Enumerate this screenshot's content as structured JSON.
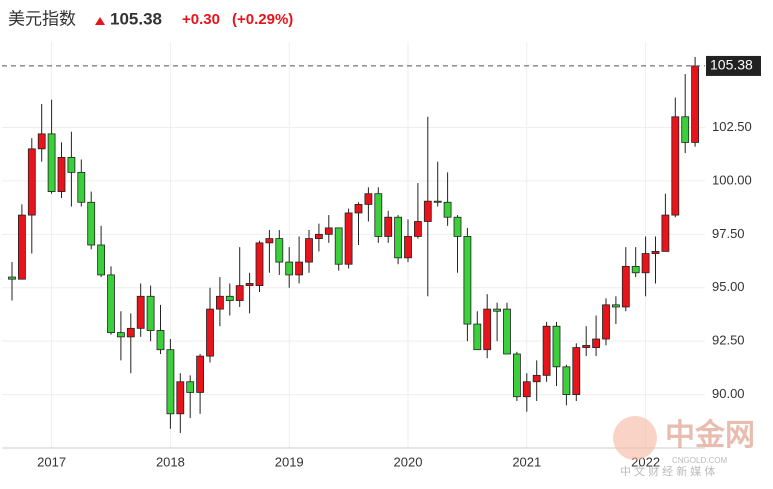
{
  "header": {
    "title": "美元指数",
    "price": 105.38,
    "change": "+0.30",
    "change_pct": "(+0.29%)"
  },
  "watermark": {
    "brand": "中金网",
    "site": "CNGOLD.COM",
    "slogan": "中 文 财 经 新 媒 体"
  },
  "chart_data": {
    "type": "candlestick",
    "categories": [
      null,
      null,
      null,
      null,
      "2017",
      null,
      null,
      null,
      null,
      null,
      null,
      null,
      null,
      null,
      null,
      null,
      "2018",
      null,
      null,
      null,
      null,
      null,
      null,
      null,
      null,
      null,
      null,
      null,
      "2019",
      null,
      null,
      null,
      null,
      null,
      null,
      null,
      null,
      null,
      null,
      null,
      "2020",
      null,
      null,
      null,
      null,
      null,
      null,
      null,
      null,
      null,
      null,
      null,
      "2021",
      null,
      null,
      null,
      null,
      null,
      null,
      null,
      null,
      null,
      null,
      null,
      "2022",
      null,
      null,
      null,
      null,
      null
    ],
    "open": [
      95.5,
      95.4,
      98.4,
      101.5,
      102.2,
      99.5,
      101.1,
      100.4,
      99.0,
      97.0,
      95.6,
      92.9,
      92.7,
      93.1,
      94.6,
      93.0,
      92.1,
      89.1,
      90.6,
      90.1,
      91.8,
      94.0,
      94.6,
      94.4,
      95.1,
      95.1,
      97.1,
      97.3,
      96.2,
      95.6,
      96.2,
      97.3,
      97.5,
      97.8,
      96.1,
      98.5,
      98.9,
      99.4,
      97.4,
      98.3,
      96.4,
      97.4,
      98.1,
      99.05,
      99.0,
      98.3,
      97.4,
      93.3,
      92.1,
      94.0,
      94.0,
      91.9,
      89.9,
      90.6,
      90.9,
      93.2,
      91.3,
      90.0,
      92.2,
      92.2,
      92.6,
      94.2,
      94.1,
      96.0,
      95.7,
      96.6,
      96.7,
      98.4,
      103.0,
      101.8
    ],
    "high": [
      96.2,
      98.9,
      102.0,
      103.6,
      103.8,
      101.8,
      102.3,
      101.0,
      99.5,
      97.9,
      96.0,
      93.9,
      93.8,
      95.2,
      95.1,
      94.2,
      92.6,
      91.0,
      90.9,
      91.9,
      95.0,
      95.5,
      95.2,
      96.9,
      95.7,
      97.2,
      97.7,
      97.7,
      96.9,
      97.4,
      97.7,
      98.0,
      98.4,
      97.8,
      98.7,
      99.0,
      99.7,
      99.7,
      98.6,
      98.4,
      98.2,
      99.9,
      103.0,
      100.9,
      100.4,
      98.4,
      97.8,
      93.9,
      94.7,
      94.3,
      94.3,
      92.0,
      91.0,
      91.6,
      93.4,
      93.4,
      91.4,
      92.4,
      93.2,
      93.7,
      94.5,
      94.6,
      96.9,
      96.9,
      97.4,
      97.4,
      99.4,
      103.9,
      105.0,
      105.8
    ],
    "low": [
      94.4,
      95.4,
      96.6,
      100.9,
      99.4,
      99.2,
      98.8,
      98.8,
      96.8,
      95.5,
      92.8,
      91.6,
      91.0,
      92.7,
      92.5,
      91.9,
      88.4,
      88.2,
      88.9,
      89.1,
      91.5,
      93.2,
      93.7,
      94.1,
      93.8,
      94.8,
      95.7,
      95.6,
      95.0,
      95.2,
      95.7,
      96.7,
      97.1,
      95.8,
      95.9,
      97.0,
      98.1,
      97.1,
      97.1,
      96.1,
      96.2,
      97.3,
      94.6,
      98.8,
      97.9,
      95.7,
      92.5,
      92.1,
      91.7,
      92.5,
      91.9,
      89.7,
      89.2,
      89.7,
      90.6,
      90.4,
      89.5,
      89.7,
      91.8,
      91.8,
      92.3,
      93.3,
      93.9,
      95.5,
      94.6,
      95.2,
      96.7,
      98.3,
      101.3,
      101.6
    ],
    "close": [
      95.4,
      98.4,
      101.5,
      102.2,
      99.5,
      101.1,
      100.4,
      99.0,
      97.0,
      95.6,
      92.9,
      92.7,
      93.1,
      94.6,
      93.0,
      92.1,
      89.1,
      90.6,
      90.1,
      91.8,
      94.0,
      94.6,
      94.4,
      95.1,
      95.2,
      97.1,
      97.3,
      96.2,
      95.6,
      96.2,
      97.3,
      97.5,
      97.8,
      96.1,
      98.5,
      98.9,
      99.4,
      97.4,
      98.3,
      96.4,
      97.4,
      98.1,
      99.05,
      99.0,
      98.3,
      97.4,
      93.3,
      92.1,
      94.0,
      93.9,
      91.9,
      89.9,
      90.6,
      90.9,
      93.2,
      91.3,
      90.0,
      92.2,
      92.3,
      92.6,
      94.2,
      94.1,
      96.0,
      95.7,
      96.6,
      96.7,
      98.4,
      103.0,
      101.8,
      105.38
    ],
    "up_color": "#e8141c",
    "down_color": "#3ccf3c",
    "last": 105.38,
    "ylim": [
      87.5,
      106.5
    ],
    "yticks": [
      {
        "value": 90,
        "label": "90.00"
      },
      {
        "value": 92.5,
        "label": "92.50"
      },
      {
        "value": 95,
        "label": "95.00"
      },
      {
        "value": 97.5,
        "label": "97.50"
      },
      {
        "value": 100,
        "label": "100.00"
      },
      {
        "value": 102.5,
        "label": "102.50"
      }
    ],
    "grid": true
  }
}
